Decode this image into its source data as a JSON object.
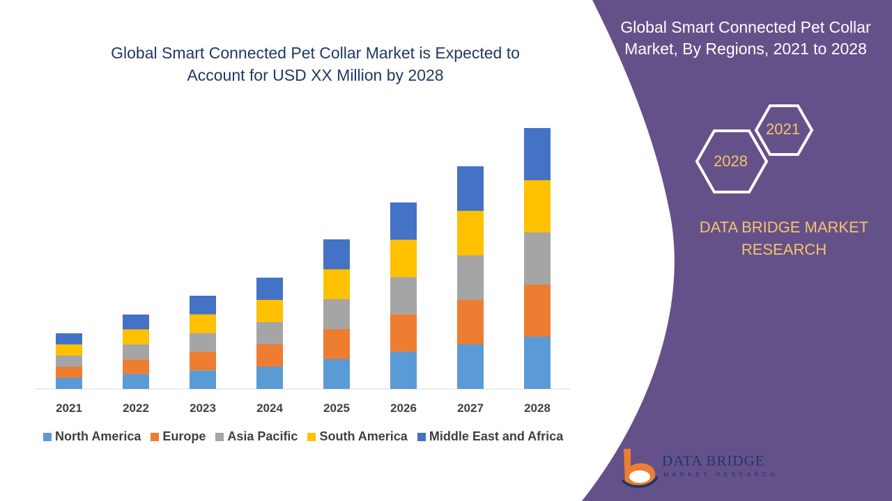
{
  "title": "Global Smart Connected Pet Collar Market is Expected to Account for USD XX Million by 2028",
  "side_panel": {
    "title": "Global Smart Connected Pet Collar Market, By Regions, 2021 to 2028",
    "hex_labels": [
      "2021",
      "2028"
    ],
    "brand": "DATA BRIDGE MARKET RESEARCH",
    "panel_color": "#65518a",
    "accent_color": "#f4c46a"
  },
  "logo": {
    "name": "DATA BRIDGE",
    "sub": "MARKET RESEARCH"
  },
  "chart_data": {
    "type": "bar",
    "stacked": true,
    "title": "Global Smart Connected Pet Collar Market is Expected to Account for USD XX Million by 2028",
    "categories": [
      "2021",
      "2022",
      "2023",
      "2024",
      "2025",
      "2026",
      "2027",
      "2028"
    ],
    "series": [
      {
        "name": "North America",
        "color": "#5b9bd5",
        "values": [
          16,
          21.4,
          26.8,
          32,
          43,
          53.6,
          64,
          75
        ]
      },
      {
        "name": "Europe",
        "color": "#ed7d31",
        "values": [
          16,
          21.4,
          26.8,
          32,
          43,
          53.6,
          64,
          75
        ]
      },
      {
        "name": "Asia Pacific",
        "color": "#a5a5a5",
        "values": [
          16,
          21.4,
          26.8,
          32,
          43,
          53.6,
          64,
          75
        ]
      },
      {
        "name": "South America",
        "color": "#ffc000",
        "values": [
          16,
          21.4,
          26.8,
          32,
          43,
          53.6,
          64,
          75
        ]
      },
      {
        "name": "Middle East and Africa",
        "color": "#4472c4",
        "values": [
          16,
          21.4,
          26.8,
          32,
          43,
          53.6,
          64,
          75
        ]
      }
    ],
    "ylim": [
      0,
      400
    ],
    "grid": false,
    "y_axis_shown": false,
    "legend": "bottom"
  }
}
